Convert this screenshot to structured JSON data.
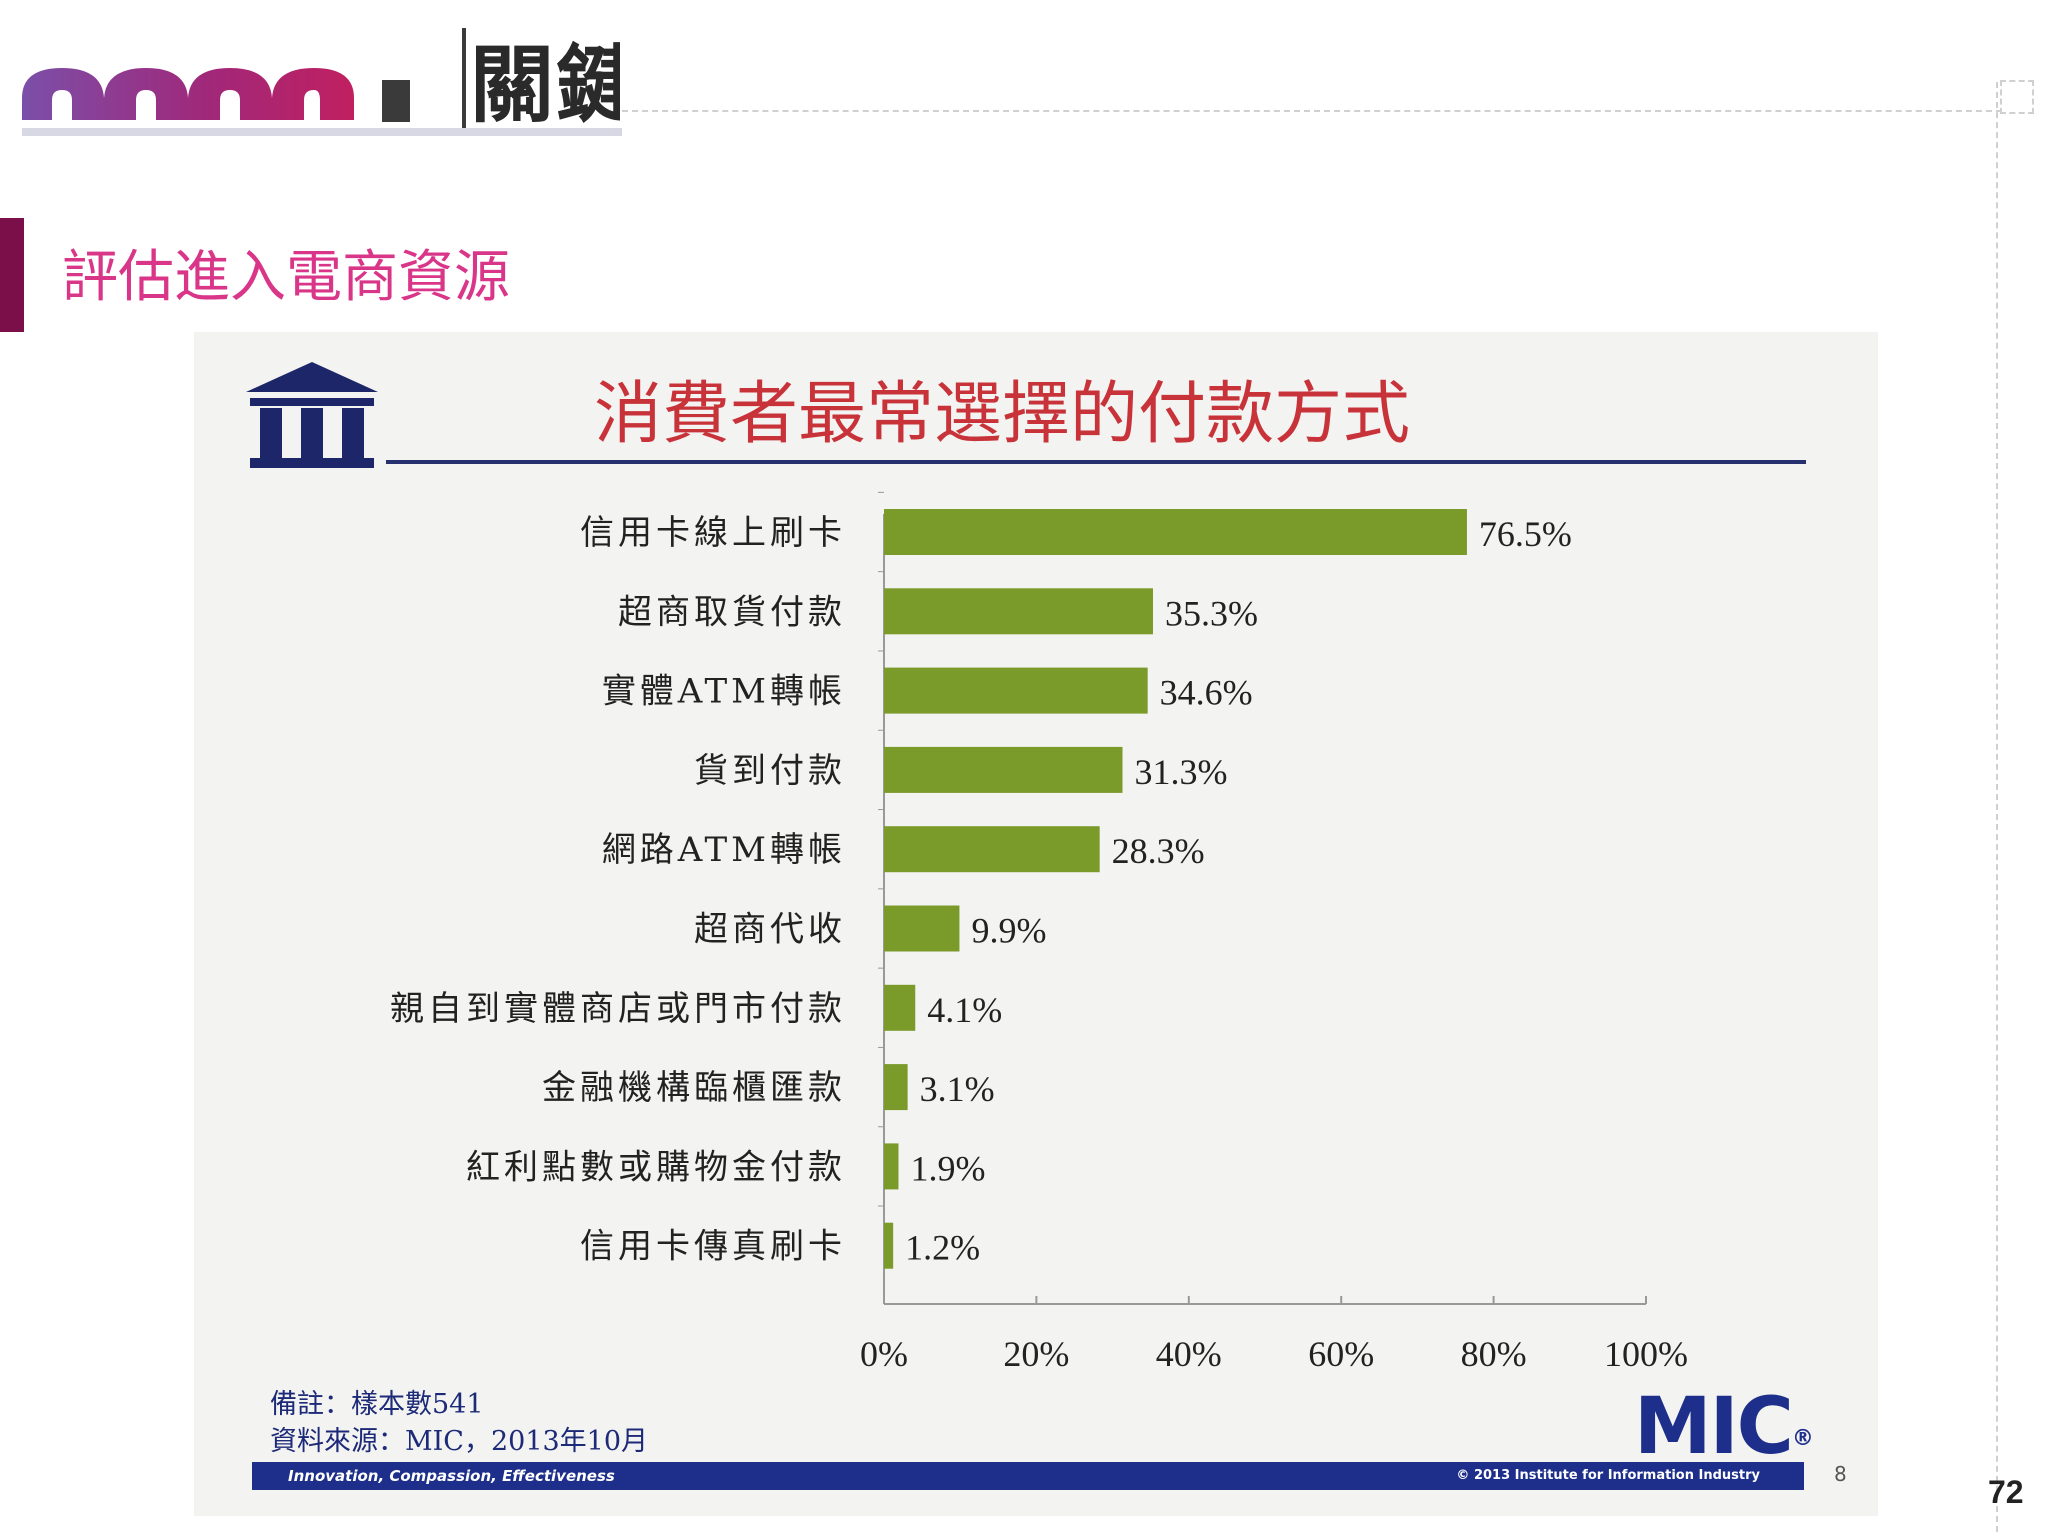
{
  "header": {
    "logo_heading": "關鍵"
  },
  "section_title": "評估進入電商資源",
  "slide": {
    "title": "消費者最常選擇的付款方式",
    "note": "備註：樣本數541",
    "source": "資料來源：MIC，2013年10月",
    "logo": "MIC",
    "logo_mark": "®",
    "footer_tagline": "Innovation, Compassion, Effectiveness",
    "footer_copyright": "© 2013 Institute for Information Industry",
    "slide_number": "8"
  },
  "page_number": "72",
  "colors": {
    "bar": "#7a9a2a",
    "title": "#c8333a",
    "section_title": "#d9368a",
    "accent": "#7a0f4a",
    "navy": "#1d2f8a"
  },
  "chart_data": {
    "type": "bar",
    "orientation": "horizontal",
    "categories": [
      "信用卡線上刷卡",
      "超商取貨付款",
      "實體ATM轉帳",
      "貨到付款",
      "網路ATM轉帳",
      "超商代收",
      "親自到實體商店或門市付款",
      "金融機構臨櫃匯款",
      "紅利點數或購物金付款",
      "信用卡傳真刷卡"
    ],
    "values": [
      76.5,
      35.3,
      34.6,
      31.3,
      28.3,
      9.9,
      4.1,
      3.1,
      1.9,
      1.2
    ],
    "value_labels": [
      "76.5%",
      "35.3%",
      "34.6%",
      "31.3%",
      "28.3%",
      "9.9%",
      "4.1%",
      "3.1%",
      "1.9%",
      "1.2%"
    ],
    "xlim": [
      0,
      100
    ],
    "xticks": [
      0,
      20,
      40,
      60,
      80,
      100
    ],
    "xtick_labels": [
      "0%",
      "20%",
      "40%",
      "60%",
      "80%",
      "100%"
    ],
    "grid": false,
    "legend": "none"
  }
}
